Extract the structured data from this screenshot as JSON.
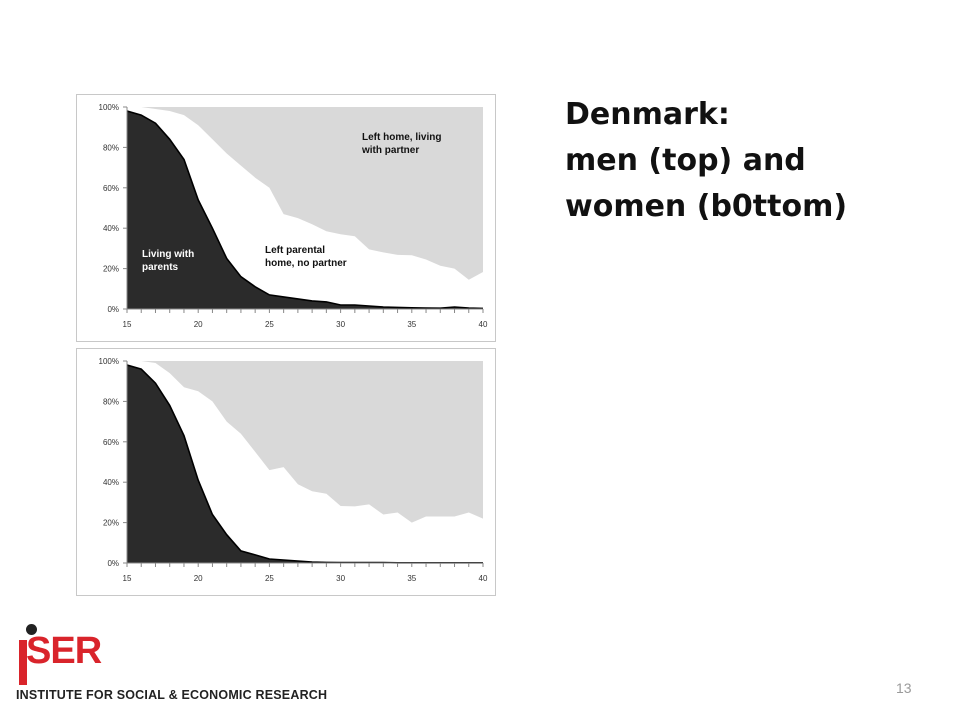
{
  "title_lines": [
    "Denmark:",
    "men (top) and",
    "women (b0ttom)"
  ],
  "page_number": "13",
  "logo": {
    "name": "SER",
    "subtitle": "INSTITUTE FOR SOCIAL & ECONOMIC RESEARCH"
  },
  "colors": {
    "living_with_parents": "#2b2b2b",
    "left_no_partner": "#ffffff",
    "left_with_partner": "#d9d9d9",
    "logo_red": "#d9242b"
  },
  "chart_data": [
    {
      "type": "area",
      "stacked": true,
      "x": [
        15,
        16,
        17,
        18,
        19,
        20,
        21,
        22,
        23,
        24,
        25,
        26,
        27,
        28,
        29,
        30,
        31,
        32,
        33,
        34,
        35,
        36,
        37,
        38,
        39,
        40
      ],
      "xlim": [
        15,
        40
      ],
      "ylim": [
        0,
        100
      ],
      "xticks": [
        "15",
        "20",
        "25",
        "30",
        "35",
        "40"
      ],
      "yticks": [
        "0%",
        "20%",
        "40%",
        "60%",
        "80%",
        "100%"
      ],
      "grid": false,
      "series": [
        {
          "values": [
            98,
            96,
            92,
            84,
            74,
            54,
            40,
            25,
            16,
            11,
            7,
            6,
            5,
            4,
            3.5,
            2,
            2,
            1.5,
            1,
            0.8,
            0.6,
            0.5,
            0.4,
            1,
            0.5,
            0.3
          ]
        },
        {
          "values": [
            2,
            4,
            7,
            14,
            22,
            37,
            44,
            52,
            55,
            54,
            53,
            41,
            40,
            38,
            35,
            35,
            34,
            28,
            27,
            26,
            26,
            24,
            21,
            19,
            14,
            18
          ]
        },
        {
          "values": [
            0,
            0,
            1,
            2,
            4,
            9,
            16,
            23,
            29,
            35,
            40,
            53,
            55,
            58,
            61.5,
            63,
            64,
            70.5,
            72,
            73.2,
            73.4,
            75.5,
            78.6,
            80,
            85.5,
            81.7
          ]
        }
      ],
      "annotations": [
        {
          "text": "Living with parents",
          "lines": [
            "Living with",
            "parents"
          ]
        },
        {
          "text": "Left parental home, no partner",
          "lines": [
            "Left parental",
            "home, no partner"
          ]
        },
        {
          "text": "Left home, living with partner",
          "lines": [
            "Left home, living",
            "with partner"
          ]
        }
      ]
    },
    {
      "type": "area",
      "stacked": true,
      "x": [
        15,
        16,
        17,
        18,
        19,
        20,
        21,
        22,
        23,
        24,
        25,
        26,
        27,
        28,
        29,
        30,
        31,
        32,
        33,
        34,
        35,
        36,
        37,
        38,
        39,
        40
      ],
      "xlim": [
        15,
        40
      ],
      "ylim": [
        0,
        100
      ],
      "xticks": [
        "15",
        "20",
        "25",
        "30",
        "35",
        "40"
      ],
      "yticks": [
        "0%",
        "20%",
        "40%",
        "60%",
        "80%",
        "100%"
      ],
      "grid": false,
      "series": [
        {
          "values": [
            98,
            96,
            89,
            78,
            63,
            41,
            24,
            14,
            6,
            4,
            2,
            1.5,
            1,
            0.5,
            0.3,
            0.2,
            0.2,
            0.2,
            0.2,
            0.1,
            0.1,
            0.1,
            0.1,
            0.1,
            0.1,
            0.1
          ]
        },
        {
          "values": [
            2,
            4,
            10,
            16,
            24,
            44,
            56,
            56,
            58,
            51,
            44,
            46,
            38,
            35,
            34,
            28,
            27.8,
            28.8,
            23.8,
            24.9,
            19.9,
            22.9,
            22.9,
            22.9,
            24.9,
            21.9
          ]
        },
        {
          "values": [
            0,
            0,
            1,
            6,
            13,
            15,
            20,
            30,
            36,
            45,
            54,
            52.5,
            61,
            64.5,
            65.7,
            71.8,
            72,
            71,
            76,
            75,
            80,
            77,
            77,
            77,
            75,
            78
          ]
        }
      ],
      "annotations": []
    }
  ]
}
